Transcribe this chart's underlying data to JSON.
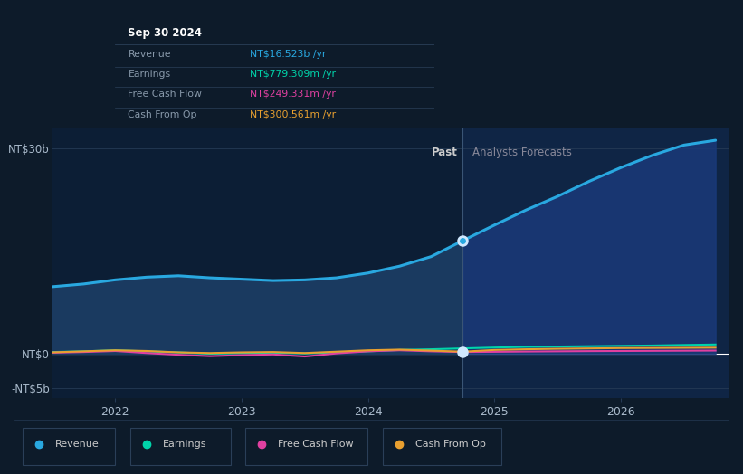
{
  "background_color": "#0d1b2a",
  "past_bg_color": "#0c1e35",
  "forecast_bg_color": "#0f2545",
  "grid_color": "#253a55",
  "past_label": "Past",
  "forecast_label": "Analysts Forecasts",
  "divider_x": 2024.75,
  "xlim": [
    2021.5,
    2026.85
  ],
  "ylim": [
    -6500000000,
    33000000000
  ],
  "ytick_positions": [
    -5000000000,
    0,
    30000000000
  ],
  "ytick_labels": [
    "-NT$5b",
    "NT$0",
    "NT$30b"
  ],
  "x_ticks": [
    2022,
    2023,
    2024,
    2025,
    2026
  ],
  "revenue_color": "#29a8e0",
  "earnings_color": "#00d4aa",
  "fcf_color": "#e040a0",
  "cashfromop_color": "#e8a030",
  "revenue_fill_past": "#1a3a60",
  "revenue_fill_forecast": "#1a3a7a",
  "tooltip_bg": "#080f18",
  "tooltip_border": "#2a3f58",
  "tooltip_title": "Sep 30 2024",
  "tooltip_title_color": "#ffffff",
  "tooltip_label_color": "#8899aa",
  "tooltip_rows": [
    {
      "label": "Revenue",
      "value": "NT$16.523b /yr",
      "color": "#29a8e0"
    },
    {
      "label": "Earnings",
      "value": "NT$779.309m /yr",
      "color": "#00d4aa"
    },
    {
      "label": "Free Cash Flow",
      "value": "NT$249.331m /yr",
      "color": "#e040a0"
    },
    {
      "label": "Cash From Op",
      "value": "NT$300.561m /yr",
      "color": "#e8a030"
    }
  ],
  "revenue_x": [
    2021.5,
    2021.75,
    2022.0,
    2022.25,
    2022.5,
    2022.75,
    2023.0,
    2023.25,
    2023.5,
    2023.75,
    2024.0,
    2024.25,
    2024.5,
    2024.75,
    2025.0,
    2025.25,
    2025.5,
    2025.75,
    2026.0,
    2026.25,
    2026.5,
    2026.75
  ],
  "revenue_y": [
    9800000000.0,
    10200000000.0,
    10800000000.0,
    11200000000.0,
    11400000000.0,
    11100000000.0,
    10900000000.0,
    10700000000.0,
    10800000000.0,
    11100000000.0,
    11800000000.0,
    12800000000.0,
    14200000000.0,
    16523000000.0,
    18800000000.0,
    21000000000.0,
    23000000000.0,
    25200000000.0,
    27200000000.0,
    29000000000.0,
    30500000000.0,
    31200000000.0
  ],
  "earnings_x": [
    2021.5,
    2021.75,
    2022.0,
    2022.25,
    2022.5,
    2022.75,
    2023.0,
    2023.25,
    2023.5,
    2023.75,
    2024.0,
    2024.25,
    2024.5,
    2024.75,
    2025.0,
    2025.25,
    2025.5,
    2025.75,
    2026.0,
    2026.25,
    2026.5,
    2026.75
  ],
  "earnings_y": [
    250000000.0,
    350000000.0,
    500000000.0,
    350000000.0,
    200000000.0,
    0,
    100000000.0,
    150000000.0,
    50000000.0,
    200000000.0,
    350000000.0,
    550000000.0,
    650000000.0,
    779000000.0,
    900000000.0,
    1000000000.0,
    1050000000.0,
    1100000000.0,
    1150000000.0,
    1200000000.0,
    1280000000.0,
    1350000000.0
  ],
  "fcf_x": [
    2021.5,
    2021.75,
    2022.0,
    2022.25,
    2022.5,
    2022.75,
    2023.0,
    2023.25,
    2023.5,
    2023.75,
    2024.0,
    2024.25,
    2024.5,
    2024.75,
    2025.0,
    2025.25,
    2025.5,
    2025.75,
    2026.0,
    2026.25,
    2026.5,
    2026.75
  ],
  "fcf_y": [
    150000000.0,
    250000000.0,
    400000000.0,
    100000000.0,
    -150000000.0,
    -350000000.0,
    -200000000.0,
    -100000000.0,
    -400000000.0,
    50000000.0,
    350000000.0,
    500000000.0,
    350000000.0,
    249000000.0,
    280000000.0,
    320000000.0,
    350000000.0,
    380000000.0,
    400000000.0,
    420000000.0,
    440000000.0,
    460000000.0
  ],
  "cashfromop_x": [
    2021.5,
    2021.75,
    2022.0,
    2022.25,
    2022.5,
    2022.75,
    2023.0,
    2023.25,
    2023.5,
    2023.75,
    2024.0,
    2024.25,
    2024.5,
    2024.75,
    2025.0,
    2025.25,
    2025.5,
    2025.75,
    2026.0,
    2026.25,
    2026.5,
    2026.75
  ],
  "cashfromop_y": [
    200000000.0,
    350000000.0,
    500000000.0,
    400000000.0,
    200000000.0,
    100000000.0,
    200000000.0,
    250000000.0,
    100000000.0,
    300000000.0,
    500000000.0,
    600000000.0,
    450000000.0,
    300000000.0,
    550000000.0,
    650000000.0,
    720000000.0,
    770000000.0,
    820000000.0,
    840000000.0,
    860000000.0,
    880000000.0
  ],
  "legend_items": [
    {
      "label": "Revenue",
      "color": "#29a8e0"
    },
    {
      "label": "Earnings",
      "color": "#00d4aa"
    },
    {
      "label": "Free Cash Flow",
      "color": "#e040a0"
    },
    {
      "label": "Cash From Op",
      "color": "#e8a030"
    }
  ],
  "divider_color": "#3a5575",
  "zero_line_color": "#ffffff",
  "zero_line_lw": 0.8
}
